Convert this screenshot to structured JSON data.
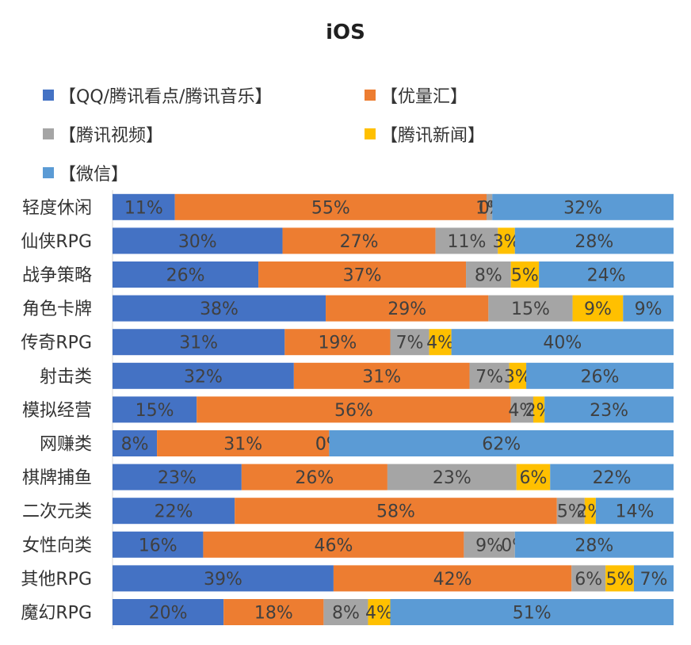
{
  "chart_data": {
    "type": "bar",
    "orientation": "horizontal",
    "stacked": "percent",
    "title": "iOS",
    "categories": [
      "轻度休闲",
      "仙侠RPG",
      "战争策略",
      "角色卡牌",
      "传奇RPG",
      "射击类",
      "模拟经营",
      "网赚类",
      "棋牌捕鱼",
      "二次元类",
      "女性向类",
      "其他RPG",
      "魔幻RPG"
    ],
    "series": [
      {
        "name": "【QQ/腾讯看点/腾讯音乐】",
        "color": "#4472C4",
        "values": [
          11,
          30,
          26,
          38,
          31,
          32,
          15,
          8,
          23,
          22,
          16,
          39,
          20
        ]
      },
      {
        "name": "【优量汇】",
        "color": "#ED7D31",
        "values": [
          55,
          27,
          37,
          29,
          19,
          31,
          56,
          31,
          26,
          58,
          46,
          42,
          18
        ]
      },
      {
        "name": "【腾讯视频】",
        "color": "#A5A5A5",
        "values": [
          1,
          11,
          8,
          15,
          7,
          7,
          4,
          0,
          23,
          5,
          9,
          6,
          8
        ]
      },
      {
        "name": "【腾讯新闻】",
        "color": "#FFC000",
        "values": [
          0,
          3,
          5,
          9,
          4,
          3,
          2,
          0,
          6,
          2,
          0,
          5,
          4
        ]
      },
      {
        "name": "【微信】",
        "color": "#5B9BD5",
        "values": [
          32,
          28,
          24,
          9,
          40,
          26,
          23,
          62,
          22,
          14,
          28,
          7,
          51
        ]
      }
    ],
    "xlim": [
      0,
      100
    ],
    "legend_position": "top",
    "grid": false
  }
}
